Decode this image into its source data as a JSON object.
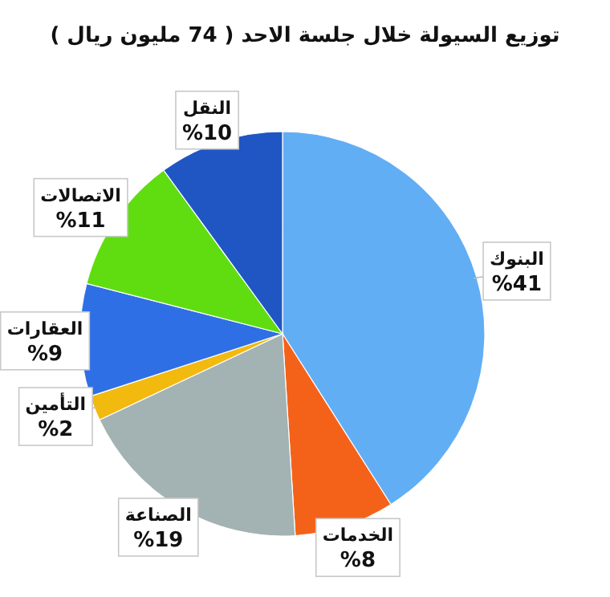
{
  "chart_data": {
    "type": "pie",
    "title": "توزيع السيولة خلال جلسة الاحد ( 74 مليون ريال )",
    "categories": [
      "البنوك",
      "الخدمات",
      "الصناعة",
      "التأمين",
      "العقارات",
      "الاتصالات",
      "النقل"
    ],
    "values": [
      41,
      8,
      19,
      2,
      9,
      11,
      10
    ],
    "value_labels": [
      "%41",
      "%8",
      "%19",
      "%2",
      "%9",
      "%11",
      "%10"
    ],
    "colors": [
      "#62aef5",
      "#f4621a",
      "#a3b2b2",
      "#f2b90f",
      "#2f6fe6",
      "#5fdd10",
      "#1f56c4"
    ]
  }
}
